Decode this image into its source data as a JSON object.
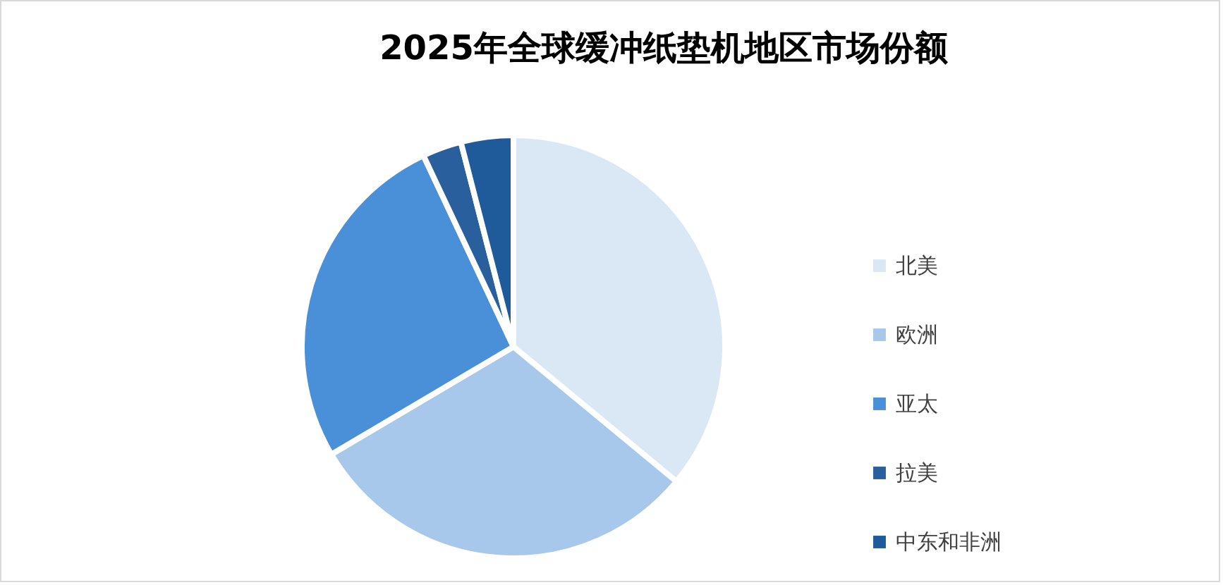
{
  "chart_data": {
    "type": "pie",
    "title": "2025年全球缓冲纸垫机地区市场份额",
    "categories": [
      "北美",
      "欧洲",
      "亚太",
      "拉美",
      "中东和非洲"
    ],
    "values": [
      36,
      30.5,
      26.5,
      3,
      4
    ],
    "colors": [
      "#dae8f6",
      "#a7c8eb",
      "#4a90d9",
      "#2a5f9e",
      "#1f5b9b"
    ],
    "legend": "right"
  }
}
